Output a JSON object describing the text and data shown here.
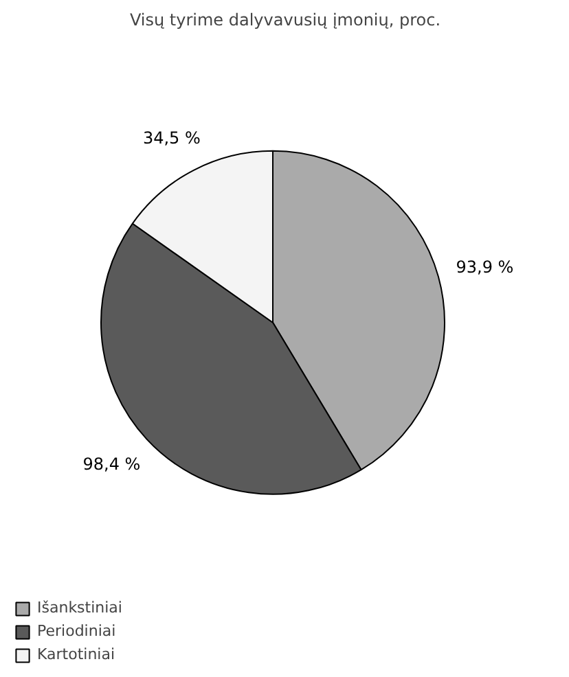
{
  "chart_data": {
    "type": "pie",
    "title": "Visų tyrime dalyvavusių įmonių, proc.",
    "categories": [
      "Išankstiniai",
      "Periodiniai",
      "Kartotiniai"
    ],
    "values": [
      93.9,
      98.4,
      34.5
    ],
    "value_labels": [
      "93,9 %",
      "98,4 %",
      "34,5 %"
    ],
    "colors": [
      "#aaaaaa",
      "#5a5a5a",
      "#f4f4f4"
    ],
    "legend": "bottom left"
  }
}
